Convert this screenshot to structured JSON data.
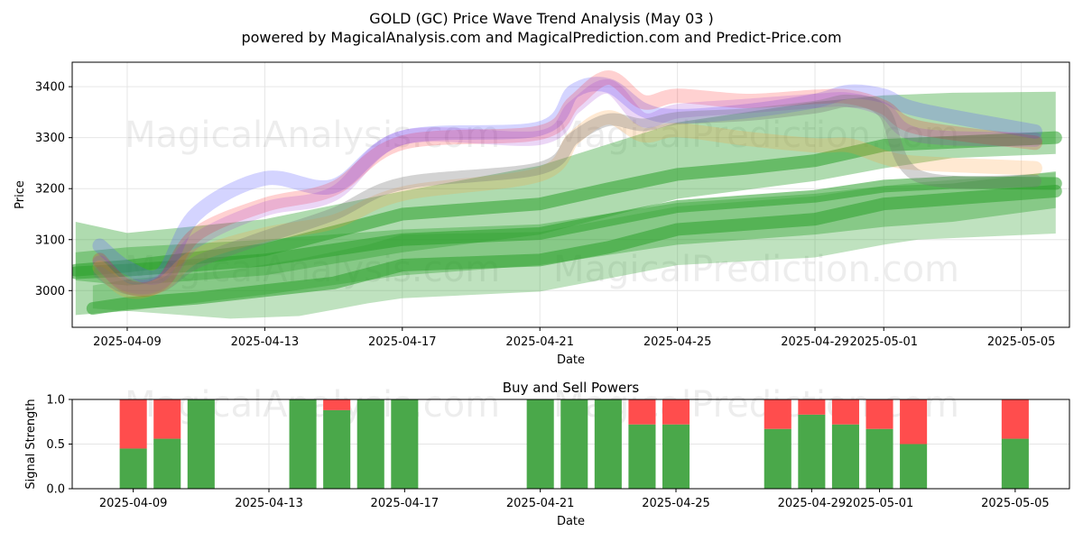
{
  "title_line1": "GOLD (GC) Price Wave Trend Analysis (May 03 )",
  "title_line2": "powered by MagicalAnalysis.com and MagicalPrediction.com and Predict-Price.com",
  "watermarks": [
    "MagicalAnalysis.com",
    "MagicalPrediction.com"
  ],
  "colors": {
    "green": "#2ca02c",
    "red": "#ff0000",
    "blue": "#5555ff",
    "purple": "#9b30d0",
    "orange": "#ff9933",
    "bar_green": "#4aa84a",
    "bar_red": "#ff4d4d"
  },
  "chart_data": [
    {
      "type": "line",
      "name": "price-wave-chart",
      "xlabel": "Date",
      "ylabel": "Price",
      "xlim": [
        -1.6,
        27.4
      ],
      "ylim": [
        2928,
        3448
      ],
      "grid": true,
      "x_ticks": [
        {
          "x": 0,
          "label": "2025-04-09"
        },
        {
          "x": 4,
          "label": "2025-04-13"
        },
        {
          "x": 8,
          "label": "2025-04-17"
        },
        {
          "x": 12,
          "label": "2025-04-21"
        },
        {
          "x": 16,
          "label": "2025-04-25"
        },
        {
          "x": 20,
          "label": "2025-04-29"
        },
        {
          "x": 22,
          "label": "2025-05-01"
        },
        {
          "x": 26,
          "label": "2025-05-05"
        }
      ],
      "y_ticks": [
        3000,
        3100,
        3200,
        3300,
        3400
      ],
      "series": [
        {
          "name": "green-band-upper",
          "color": "green",
          "kind": "band",
          "opacity": 0.38,
          "x": [
            -1.5,
            0,
            4,
            8,
            12,
            16,
            20,
            22,
            24,
            27
          ],
          "upper": [
            3135,
            3113,
            3140,
            3195,
            3245,
            3330,
            3370,
            3383,
            3388,
            3390
          ],
          "lower": [
            3020,
            3010,
            3030,
            3075,
            3110,
            3180,
            3215,
            3240,
            3260,
            3268
          ]
        },
        {
          "name": "green-band-lower",
          "color": "green",
          "kind": "band",
          "opacity": 0.38,
          "x": [
            -1.5,
            0,
            4,
            8,
            12,
            16,
            20,
            22,
            24,
            27
          ],
          "upper": [
            3075,
            3085,
            3100,
            3120,
            3130,
            3172,
            3190,
            3205,
            3210,
            3234
          ],
          "lower": [
            2952,
            2960,
            2992,
            3030,
            3050,
            3090,
            3110,
            3125,
            3135,
            3162
          ]
        },
        {
          "name": "green-band-outer",
          "color": "green",
          "kind": "band",
          "opacity": 0.3,
          "x": [
            -1,
            0,
            3,
            5,
            7,
            8,
            12,
            16,
            20,
            22,
            23,
            27
          ],
          "upper": [
            3010,
            3022,
            3040,
            3062,
            3090,
            3110,
            3115,
            3165,
            3185,
            3205,
            3212,
            3232
          ],
          "lower": [
            2965,
            2960,
            2945,
            2950,
            2975,
            2985,
            2998,
            3050,
            3065,
            3090,
            3100,
            3112
          ]
        },
        {
          "name": "green-line-1",
          "color": "green",
          "kind": "line",
          "width": 14,
          "opacity": 0.55,
          "x": [
            -1.5,
            0,
            4,
            8,
            12,
            14,
            16,
            18,
            20,
            22,
            27
          ],
          "y": [
            3040,
            3048,
            3080,
            3150,
            3170,
            3200,
            3228,
            3240,
            3255,
            3285,
            3300
          ]
        },
        {
          "name": "green-line-2",
          "color": "green",
          "kind": "line",
          "width": 14,
          "opacity": 0.55,
          "x": [
            -1.5,
            0,
            4,
            8,
            12,
            16,
            20,
            22,
            24,
            27
          ],
          "y": [
            3035,
            3040,
            3060,
            3100,
            3112,
            3165,
            3185,
            3205,
            3212,
            3210
          ]
        },
        {
          "name": "green-line-3",
          "color": "green",
          "kind": "line",
          "width": 14,
          "opacity": 0.55,
          "x": [
            -1,
            0,
            2,
            4,
            6,
            8,
            12,
            14,
            16,
            20,
            22,
            27
          ],
          "y": [
            2965,
            2975,
            2985,
            3000,
            3015,
            3050,
            3060,
            3085,
            3120,
            3140,
            3170,
            3195
          ]
        },
        {
          "name": "blue-wave",
          "color": "blue",
          "kind": "wave",
          "width": 16,
          "opacity": 0.25,
          "x": [
            -0.8,
            0,
            1,
            2,
            4,
            6,
            8,
            12,
            13,
            14,
            15,
            16,
            18,
            20,
            21,
            22,
            23,
            26.4
          ],
          "y": [
            3088,
            3045,
            3032,
            3150,
            3220,
            3205,
            3300,
            3318,
            3392,
            3402,
            3355,
            3342,
            3352,
            3372,
            3390,
            3382,
            3355,
            3312
          ]
        },
        {
          "name": "red-wave",
          "color": "red",
          "kind": "wave",
          "width": 16,
          "opacity": 0.18,
          "x": [
            -0.8,
            0,
            1,
            2,
            4,
            6,
            8,
            12,
            13,
            14,
            15,
            16,
            18,
            20,
            21,
            22,
            23,
            26.4
          ],
          "y": [
            3060,
            3008,
            3015,
            3110,
            3168,
            3200,
            3290,
            3310,
            3370,
            3418,
            3370,
            3382,
            3372,
            3380,
            3380,
            3360,
            3320,
            3290
          ]
        },
        {
          "name": "purple-wave",
          "color": "purple",
          "kind": "wave",
          "width": 16,
          "opacity": 0.2,
          "x": [
            -0.8,
            0,
            1,
            2,
            4,
            6,
            8,
            12,
            13,
            14,
            15,
            16,
            18,
            20,
            21,
            22,
            23,
            26.4
          ],
          "y": [
            3055,
            3012,
            3018,
            3098,
            3160,
            3190,
            3300,
            3300,
            3360,
            3400,
            3335,
            3352,
            3362,
            3372,
            3374,
            3355,
            3305,
            3296
          ]
        },
        {
          "name": "orange-wave",
          "color": "orange",
          "kind": "wave",
          "width": 16,
          "opacity": 0.22,
          "x": [
            -0.8,
            0,
            1,
            2,
            4,
            6,
            8,
            12,
            13,
            14,
            15,
            16,
            18,
            20,
            21,
            22,
            23,
            26.4
          ],
          "y": [
            3045,
            3000,
            3012,
            3068,
            3110,
            3135,
            3190,
            3228,
            3300,
            3340,
            3305,
            3315,
            3298,
            3285,
            3285,
            3262,
            3250,
            3240
          ]
        },
        {
          "name": "gray-trend",
          "color": "#777777",
          "kind": "wave",
          "width": 14,
          "opacity": 0.32,
          "x": [
            -0.8,
            0,
            1,
            2,
            4,
            6,
            8,
            12,
            13,
            14,
            15,
            16,
            18,
            20,
            21,
            22,
            23,
            26.4
          ],
          "y": [
            3035,
            3005,
            3010,
            3055,
            3105,
            3150,
            3210,
            3240,
            3300,
            3335,
            3325,
            3338,
            3345,
            3360,
            3372,
            3350,
            3225,
            3215
          ]
        }
      ]
    },
    {
      "type": "bar",
      "name": "buy-sell-powers-chart",
      "title": "Buy and Sell Powers",
      "xlabel": "Date",
      "ylabel": "Signal Strength",
      "xlim": [
        -1.8,
        27.6
      ],
      "ylim": [
        0,
        1
      ],
      "grid": true,
      "y_ticks": [
        0.0,
        0.5,
        1.0
      ],
      "y_tick_labels": [
        "0.0",
        "0.5",
        "1.0"
      ],
      "x_ticks": [
        {
          "x": 0,
          "label": "2025-04-09"
        },
        {
          "x": 4,
          "label": "2025-04-13"
        },
        {
          "x": 8,
          "label": "2025-04-17"
        },
        {
          "x": 12,
          "label": "2025-04-21"
        },
        {
          "x": 16,
          "label": "2025-04-25"
        },
        {
          "x": 20,
          "label": "2025-04-29"
        },
        {
          "x": 22,
          "label": "2025-05-01"
        },
        {
          "x": 26,
          "label": "2025-05-05"
        }
      ],
      "bars": [
        {
          "date": "2025-04-09",
          "x": 0,
          "buy": 0.45,
          "sell": 0.55
        },
        {
          "date": "2025-04-10",
          "x": 1,
          "buy": 0.56,
          "sell": 0.44
        },
        {
          "date": "2025-04-11",
          "x": 2,
          "buy": 1.0,
          "sell": 0.0
        },
        {
          "date": "2025-04-14",
          "x": 5,
          "buy": 1.0,
          "sell": 0.0
        },
        {
          "date": "2025-04-15",
          "x": 6,
          "buy": 0.88,
          "sell": 0.12
        },
        {
          "date": "2025-04-16",
          "x": 7,
          "buy": 1.0,
          "sell": 0.0
        },
        {
          "date": "2025-04-17",
          "x": 8,
          "buy": 1.0,
          "sell": 0.0
        },
        {
          "date": "2025-04-21",
          "x": 12,
          "buy": 1.0,
          "sell": 0.0
        },
        {
          "date": "2025-04-22",
          "x": 13,
          "buy": 1.0,
          "sell": 0.0
        },
        {
          "date": "2025-04-23",
          "x": 14,
          "buy": 1.0,
          "sell": 0.0
        },
        {
          "date": "2025-04-24",
          "x": 15,
          "buy": 0.72,
          "sell": 0.28
        },
        {
          "date": "2025-04-25",
          "x": 16,
          "buy": 0.72,
          "sell": 0.28
        },
        {
          "date": "2025-04-28",
          "x": 19,
          "buy": 0.67,
          "sell": 0.33
        },
        {
          "date": "2025-04-29",
          "x": 20,
          "buy": 0.83,
          "sell": 0.17
        },
        {
          "date": "2025-04-30",
          "x": 21,
          "buy": 0.72,
          "sell": 0.28
        },
        {
          "date": "2025-05-01",
          "x": 22,
          "buy": 0.67,
          "sell": 0.33
        },
        {
          "date": "2025-05-02",
          "x": 23,
          "buy": 0.5,
          "sell": 0.5
        },
        {
          "date": "2025-05-05",
          "x": 26,
          "buy": 0.56,
          "sell": 0.44
        }
      ]
    }
  ]
}
